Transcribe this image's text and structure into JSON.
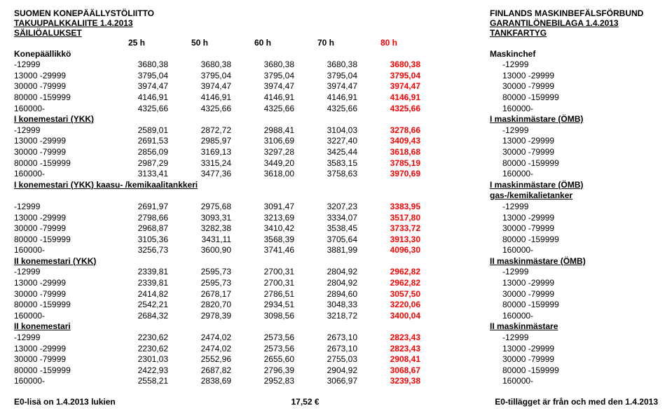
{
  "header": {
    "left_title": "SUOMEN KONEPÄÄLLYSTÖLIITTO",
    "left_sub1": "TAKUUPALKKALIITE 1.4.2013",
    "left_sub2": "SÄILIÖALUKSET",
    "right_title": "FINLANDS MASKINBEFÄLSFÖRBUND",
    "right_sub1": "GARANTILÖNEBILAGA 1.4.2013",
    "right_sub2": "TANKFARTYG",
    "hours": [
      "25 h",
      "50 h",
      "60 h",
      "70 h",
      "80 h"
    ]
  },
  "ranges": [
    "-12999",
    "13000 -29999",
    "30000 -79999",
    "80000 -159999",
    "160000-"
  ],
  "sections": [
    {
      "left_label": "Konepäällikkö",
      "right_label": "Maskinchef",
      "underline": false,
      "rows": [
        {
          "r": "-12999",
          "v": [
            "3680,38",
            "3680,38",
            "3680,38",
            "3680,38",
            "3680,38"
          ],
          "rr": "-12999"
        },
        {
          "r": "13000 -29999",
          "v": [
            "3795,04",
            "3795,04",
            "3795,04",
            "3795,04",
            "3795,04"
          ],
          "rr": "13000 -29999"
        },
        {
          "r": "30000 -79999",
          "v": [
            "3974,47",
            "3974,47",
            "3974,47",
            "3974,47",
            "3974,47"
          ],
          "rr": "30000 -79999"
        },
        {
          "r": "80000 -159999",
          "v": [
            "4146,91",
            "4146,91",
            "4146,91",
            "4146,91",
            "4146,91"
          ],
          "rr": "80000 -159999"
        },
        {
          "r": "160000-",
          "v": [
            "4325,66",
            "4325,66",
            "4325,66",
            "4325,66",
            "4325,66"
          ],
          "rr": "160000-"
        }
      ]
    },
    {
      "left_label": "I konemestari (YKK)",
      "right_label": "I maskinmästare (ÖMB)",
      "underline": true,
      "rows": [
        {
          "r": "-12999",
          "v": [
            "2589,01",
            "2872,72",
            "2988,41",
            "3104,03",
            "3278,66"
          ],
          "rr": "-12999"
        },
        {
          "r": "13000 -29999",
          "v": [
            "2691,53",
            "2985,97",
            "3106,69",
            "3227,40",
            "3409,43"
          ],
          "rr": "13000 -29999"
        },
        {
          "r": "30000 -79999",
          "v": [
            "2856,09",
            "3169,13",
            "3297,28",
            "3425,44",
            "3618,68"
          ],
          "rr": "30000 -79999"
        },
        {
          "r": "80000 -159999",
          "v": [
            "2987,29",
            "3315,24",
            "3449,20",
            "3583,15",
            "3785,19"
          ],
          "rr": "80000 -159999"
        },
        {
          "r": "160000-",
          "v": [
            "3133,41",
            "3477,36",
            "3618,00",
            "3758,63",
            "3970,69"
          ],
          "rr": "160000-"
        }
      ]
    },
    {
      "left_label": "I konemestari (YKK) kaasu- /kemikaalitankkeri",
      "right_label": "I maskinmästare (ÖMB)  gas-/kemikalietanker",
      "underline": true,
      "rows": [
        {
          "r": "-12999",
          "v": [
            "2691,97",
            "2975,68",
            "3091,47",
            "3207,23",
            "3383,95"
          ],
          "rr": "-12999"
        },
        {
          "r": "13000 -29999",
          "v": [
            "2798,66",
            "3093,31",
            "3213,69",
            "3334,07",
            "3517,80"
          ],
          "rr": "13000 -29999"
        },
        {
          "r": "30000 -79999",
          "v": [
            "2968,87",
            "3282,38",
            "3410,42",
            "3538,45",
            "3733,72"
          ],
          "rr": "30000 -79999"
        },
        {
          "r": "80000 -159999",
          "v": [
            "3105,36",
            "3431,11",
            "3568,39",
            "3705,64",
            "3913,30"
          ],
          "rr": "80000 -159999"
        },
        {
          "r": "160000-",
          "v": [
            "3256,73",
            "3600,90",
            "3741,46",
            "3881,99",
            "4096,30"
          ],
          "rr": "160000-"
        }
      ]
    },
    {
      "left_label": "II konemestari (YKK)",
      "right_label": "II maskinmästare (ÖMB)",
      "underline": true,
      "rows": [
        {
          "r": "-12999",
          "v": [
            "2339,81",
            "2595,73",
            "2700,31",
            "2804,92",
            "2962,82"
          ],
          "rr": "-12999"
        },
        {
          "r": "13000 -29999",
          "v": [
            "2339,81",
            "2595,73",
            "2700,31",
            "2804,92",
            "2962,82"
          ],
          "rr": "13000 -29999"
        },
        {
          "r": "30000 -79999",
          "v": [
            "2414,82",
            "2678,17",
            "2786,51",
            "2894,60",
            "3057,50"
          ],
          "rr": "30000 -79999"
        },
        {
          "r": "80000 -159999",
          "v": [
            "2542,21",
            "2820,70",
            "2934,51",
            "3048,33",
            "3220,06"
          ],
          "rr": "80000 -159999"
        },
        {
          "r": "160000-",
          "v": [
            "2684,32",
            "2978,39",
            "3098,56",
            "3218,72",
            "3400,04"
          ],
          "rr": "160000-"
        }
      ]
    },
    {
      "left_label": "II konemestari",
      "right_label": "II maskinmästare",
      "underline": true,
      "rows": [
        {
          "r": "-12999",
          "v": [
            "2230,62",
            "2474,02",
            "2573,56",
            "2673,10",
            "2823,43"
          ],
          "rr": "-12999"
        },
        {
          "r": "13000 -29999",
          "v": [
            "2230,62",
            "2474,02",
            "2573,56",
            "2673,10",
            "2823,43"
          ],
          "rr": "13000 -29999"
        },
        {
          "r": "30000 -79999",
          "v": [
            "2301,03",
            "2552,96",
            "2655,60",
            "2755,03",
            "2908,41"
          ],
          "rr": "30000 -79999"
        },
        {
          "r": "80000 -159999",
          "v": [
            "2422,93",
            "2687,82",
            "2796,39",
            "2904,92",
            "3068,67"
          ],
          "rr": "80000 -159999"
        },
        {
          "r": "160000-",
          "v": [
            "2558,21",
            "2838,69",
            "2952,83",
            "3066,97",
            "3239,38"
          ],
          "rr": "160000-"
        }
      ]
    }
  ],
  "footer": {
    "left": "E0-lisä on 1.4.2013 lukien",
    "amount": "17,52",
    "currency": "€",
    "right": "E0-tillägget är från och med den 1.4.2013"
  },
  "style": {
    "red": "#ff0000",
    "black": "#000000",
    "bg": "#ffffff",
    "font_size": 12,
    "col_range_w": 130,
    "col_val_w": 90
  }
}
